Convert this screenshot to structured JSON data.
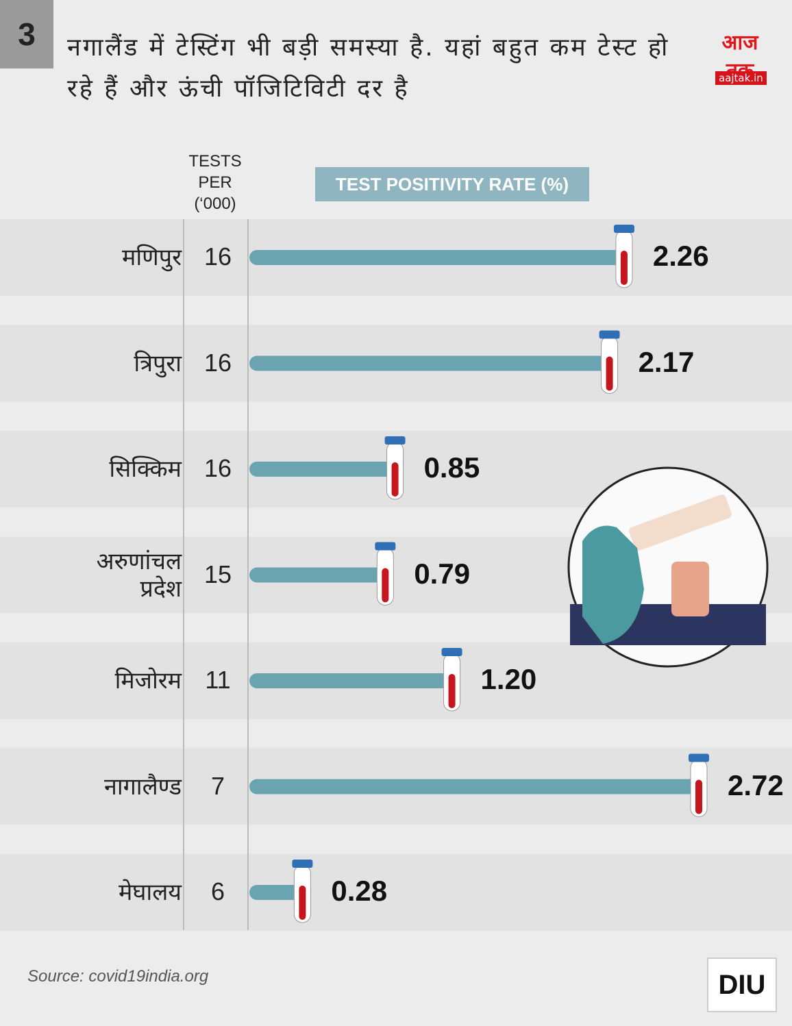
{
  "badge": "3",
  "logo": {
    "name": "आज तक",
    "site": "aajtak.in"
  },
  "chart_data": {
    "type": "bar",
    "title": "नगालैंड में टेस्टिंग भी बड़ी समस्या है. यहां बहुत कम टेस्ट हो रहे हैं और ऊंची पॉजिटिविटी दर है",
    "tests_label": "TESTS PER (‘000)",
    "value_label": "TEST POSITIVITY RATE (%)",
    "categories": [
      "मणिपुर",
      "त्रिपुरा",
      "सिक्किम",
      "अरुणांचल प्रदेश",
      "मिजोरम",
      "नागालैण्ड",
      "मेघालय"
    ],
    "tests": [
      16,
      16,
      16,
      15,
      11,
      7,
      6
    ],
    "values": [
      2.26,
      2.17,
      0.85,
      0.79,
      1.2,
      2.72,
      0.28
    ],
    "value_labels": [
      "2.26",
      "2.17",
      "0.85",
      "0.79",
      "1.20",
      "2.72",
      "0.28"
    ],
    "color": "#6ba4b1"
  },
  "source": "Source: covid19india.org",
  "footer_logo": "DIU"
}
